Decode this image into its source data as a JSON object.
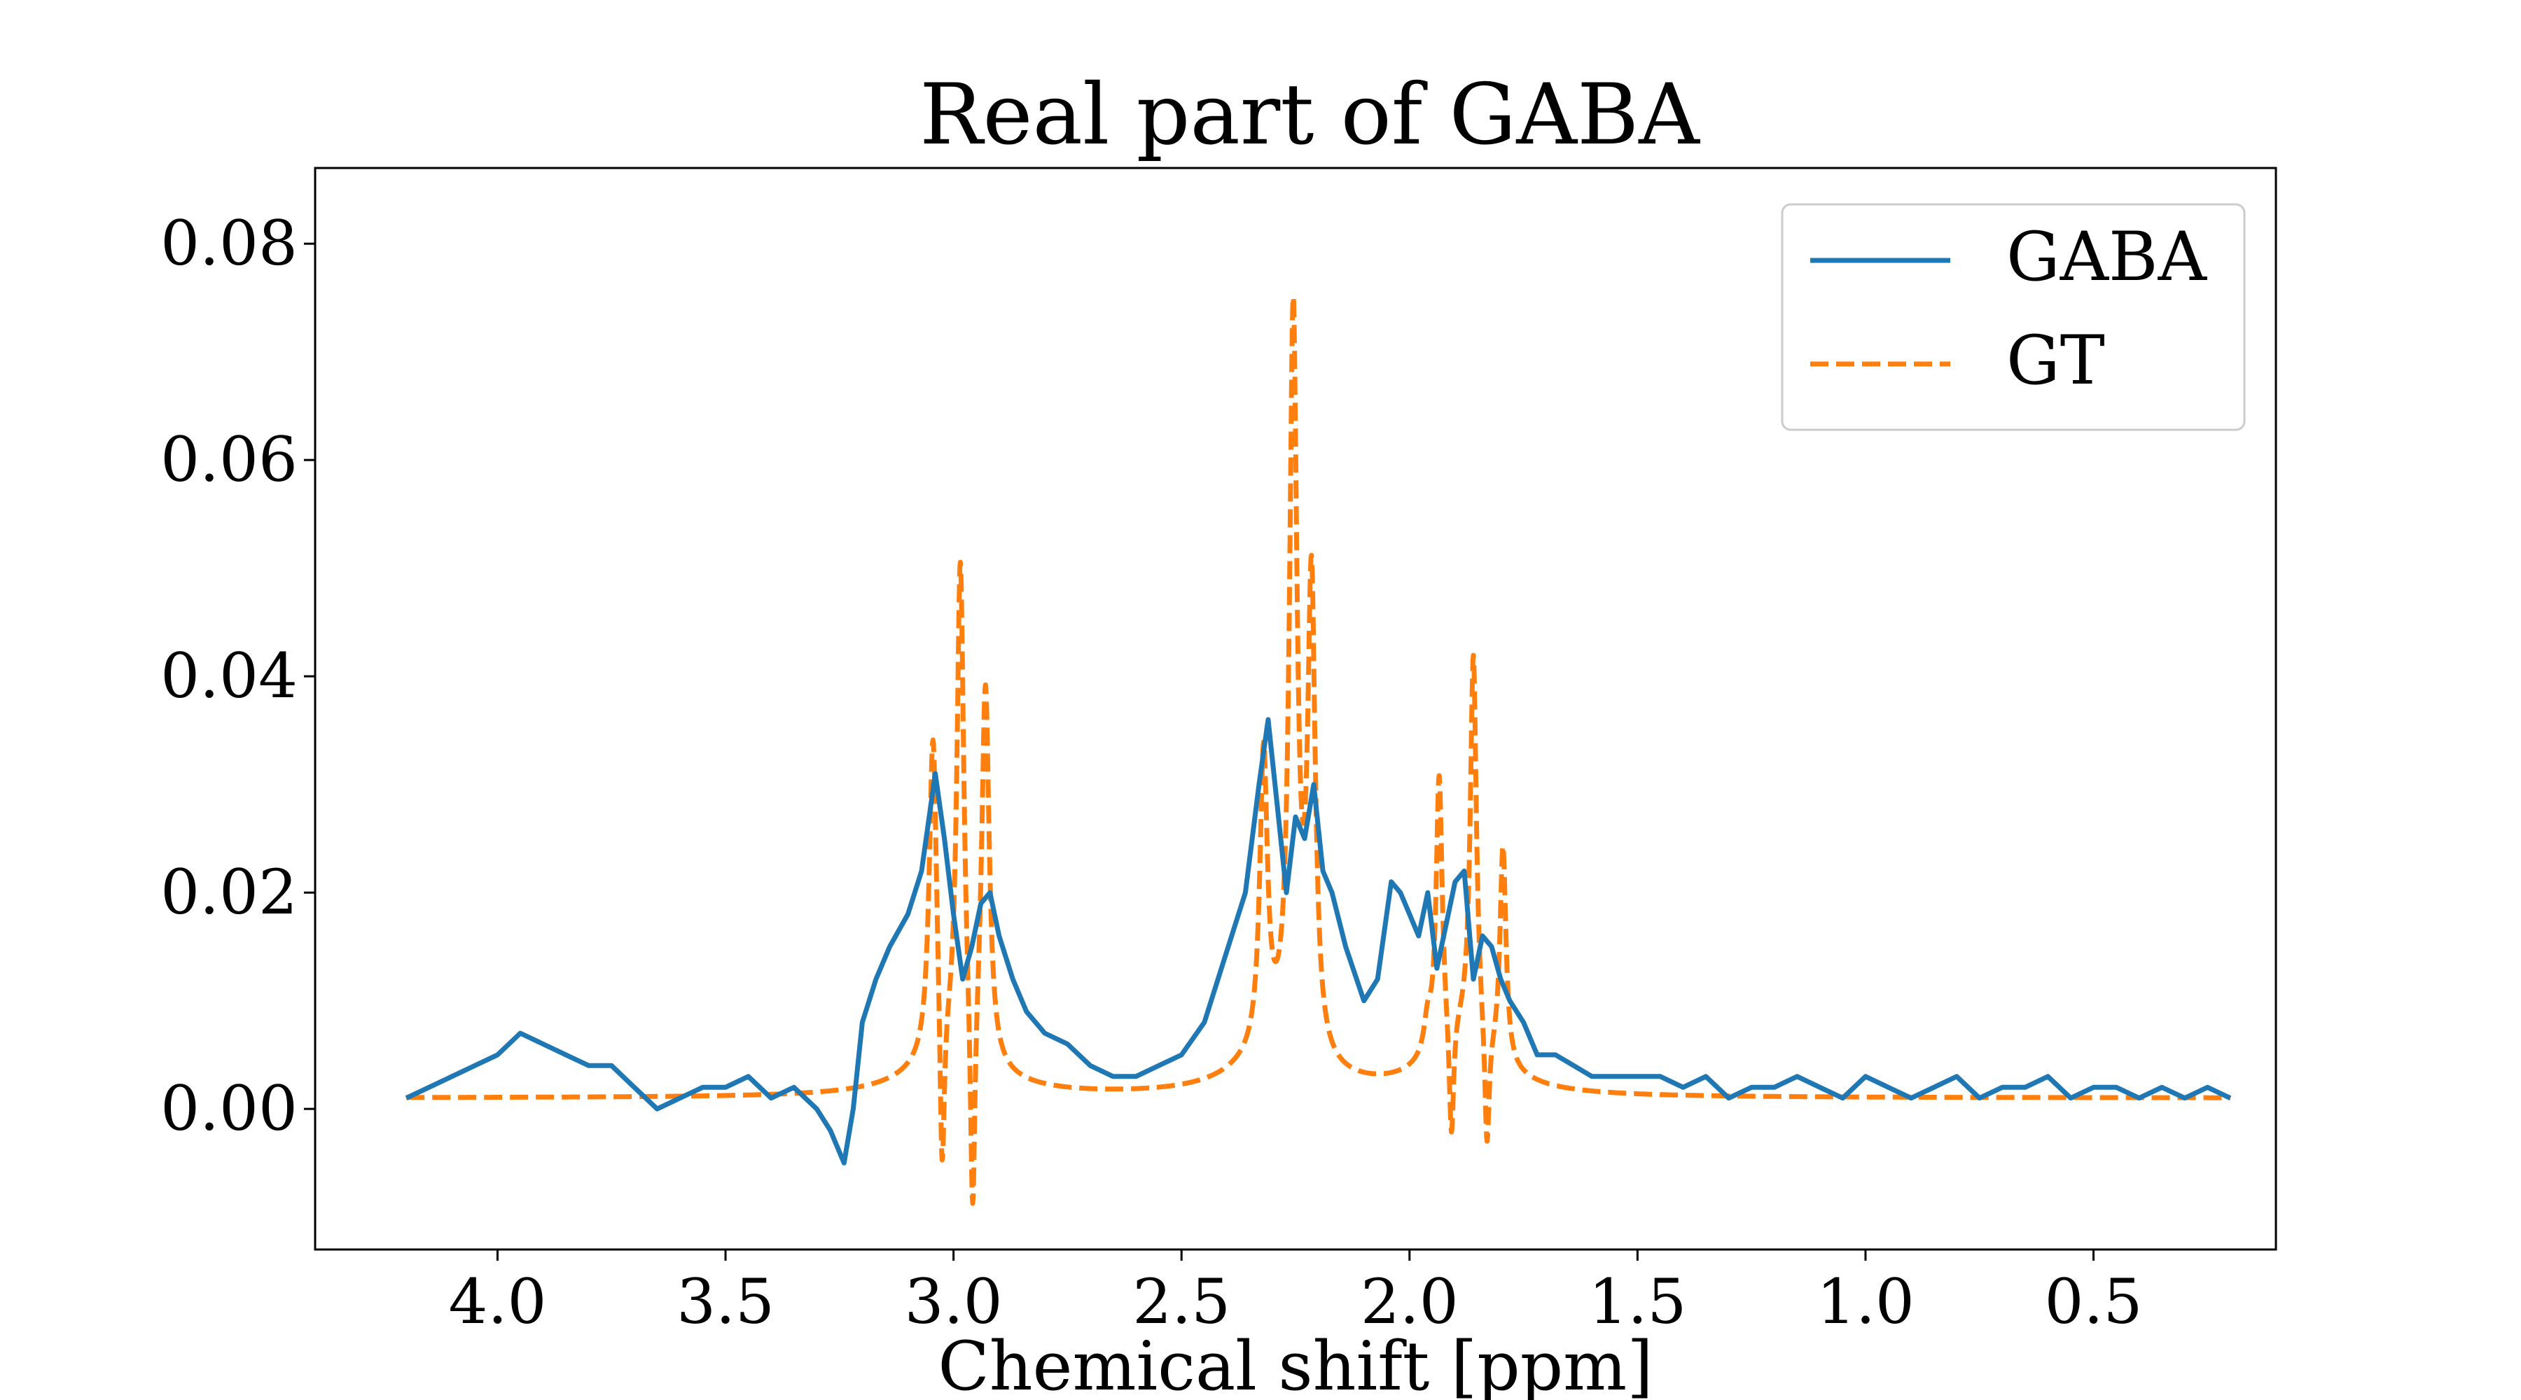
{
  "chart_data": {
    "type": "line",
    "title": "Real part of GABA",
    "xlabel": "Chemical shift [ppm]",
    "ylabel": "",
    "xlim": [
      4.4,
      0.1
    ],
    "ylim": [
      -0.013,
      0.087
    ],
    "x_inverted": true,
    "grid": false,
    "legend_position": "top-right",
    "x_ticks": [
      4.0,
      3.5,
      3.0,
      2.5,
      2.0,
      1.5,
      1.0,
      0.5
    ],
    "x_tick_labels": [
      "4.0",
      "3.5",
      "3.0",
      "2.5",
      "2.0",
      "1.5",
      "1.0",
      "0.5"
    ],
    "y_ticks": [
      0.0,
      0.02,
      0.04,
      0.06,
      0.08
    ],
    "y_tick_labels": [
      "0.00",
      "0.02",
      "0.04",
      "0.06",
      "0.08"
    ],
    "series": [
      {
        "name": "GABA",
        "color": "#1f77b4",
        "style": "solid",
        "x": [
          4.2,
          4.1,
          4.0,
          3.95,
          3.9,
          3.85,
          3.8,
          3.75,
          3.7,
          3.65,
          3.6,
          3.55,
          3.5,
          3.45,
          3.4,
          3.35,
          3.3,
          3.27,
          3.24,
          3.22,
          3.2,
          3.17,
          3.14,
          3.1,
          3.07,
          3.04,
          3.02,
          3.0,
          2.98,
          2.96,
          2.94,
          2.92,
          2.9,
          2.87,
          2.84,
          2.8,
          2.75,
          2.7,
          2.65,
          2.6,
          2.55,
          2.5,
          2.45,
          2.42,
          2.39,
          2.36,
          2.33,
          2.31,
          2.29,
          2.27,
          2.25,
          2.23,
          2.21,
          2.19,
          2.17,
          2.14,
          2.1,
          2.07,
          2.04,
          2.02,
          2.0,
          1.98,
          1.96,
          1.94,
          1.92,
          1.9,
          1.88,
          1.86,
          1.84,
          1.82,
          1.8,
          1.78,
          1.75,
          1.72,
          1.68,
          1.64,
          1.6,
          1.55,
          1.5,
          1.45,
          1.4,
          1.35,
          1.3,
          1.25,
          1.2,
          1.15,
          1.1,
          1.05,
          1.0,
          0.95,
          0.9,
          0.85,
          0.8,
          0.75,
          0.7,
          0.65,
          0.6,
          0.55,
          0.5,
          0.45,
          0.4,
          0.35,
          0.3,
          0.25,
          0.2
        ],
        "y": [
          0.001,
          0.003,
          0.005,
          0.007,
          0.006,
          0.005,
          0.004,
          0.004,
          0.002,
          0.0,
          0.001,
          0.002,
          0.002,
          0.003,
          0.001,
          0.002,
          0.0,
          -0.002,
          -0.005,
          0.0,
          0.008,
          0.012,
          0.015,
          0.018,
          0.022,
          0.031,
          0.025,
          0.018,
          0.012,
          0.015,
          0.019,
          0.02,
          0.016,
          0.012,
          0.009,
          0.007,
          0.006,
          0.004,
          0.003,
          0.003,
          0.004,
          0.005,
          0.008,
          0.012,
          0.016,
          0.02,
          0.03,
          0.036,
          0.028,
          0.02,
          0.027,
          0.025,
          0.03,
          0.022,
          0.02,
          0.015,
          0.01,
          0.012,
          0.021,
          0.02,
          0.018,
          0.016,
          0.02,
          0.013,
          0.017,
          0.021,
          0.022,
          0.012,
          0.016,
          0.015,
          0.012,
          0.01,
          0.008,
          0.005,
          0.005,
          0.004,
          0.003,
          0.003,
          0.003,
          0.003,
          0.002,
          0.003,
          0.001,
          0.002,
          0.002,
          0.003,
          0.002,
          0.001,
          0.003,
          0.002,
          0.001,
          0.002,
          0.003,
          0.001,
          0.002,
          0.002,
          0.003,
          0.001,
          0.002,
          0.002,
          0.001,
          0.002,
          0.001,
          0.002,
          0.001
        ]
      },
      {
        "name": "GT",
        "color": "#ff7f0e",
        "style": "dashed",
        "model": "sum of lorentzian lines on a 0.001 baseline",
        "baseline": 0.001,
        "peaks": [
          {
            "center": 3.045,
            "amplitude": 0.03,
            "width": 0.01
          },
          {
            "center": 3.025,
            "amplitude": -0.018,
            "width": 0.006
          },
          {
            "center": 2.985,
            "amplitude": 0.045,
            "width": 0.009
          },
          {
            "center": 2.958,
            "amplitude": -0.022,
            "width": 0.006
          },
          {
            "center": 2.93,
            "amplitude": 0.035,
            "width": 0.01
          },
          {
            "center": 3.0,
            "amplitude": 0.004,
            "width": 0.1
          },
          {
            "center": 2.32,
            "amplitude": 0.027,
            "width": 0.01
          },
          {
            "center": 2.255,
            "amplitude": 0.067,
            "width": 0.01
          },
          {
            "center": 2.215,
            "amplitude": 0.043,
            "width": 0.01
          },
          {
            "center": 2.29,
            "amplitude": 0.004,
            "width": 0.1
          },
          {
            "center": 1.96,
            "amplitude": 0.003,
            "width": 0.01
          },
          {
            "center": 1.935,
            "amplitude": 0.025,
            "width": 0.008
          },
          {
            "center": 1.908,
            "amplitude": -0.012,
            "width": 0.006
          },
          {
            "center": 1.86,
            "amplitude": 0.035,
            "width": 0.008
          },
          {
            "center": 1.83,
            "amplitude": -0.012,
            "width": 0.006
          },
          {
            "center": 1.795,
            "amplitude": 0.02,
            "width": 0.008
          },
          {
            "center": 1.88,
            "amplitude": 0.006,
            "width": 0.08
          }
        ]
      }
    ]
  }
}
